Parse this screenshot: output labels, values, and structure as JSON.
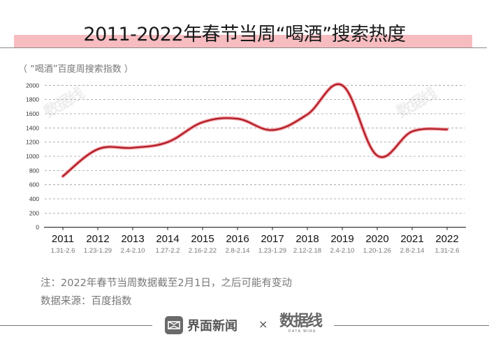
{
  "header": {
    "title": "2011-2022年春节当周“喝酒”搜索热度",
    "band_color": "#f7bcc0"
  },
  "chart_data": {
    "type": "line",
    "title": "2011-2022年春节当周“喝酒”搜索热度",
    "ylabel": "（ “喝酒”百度周搜索指数 ）",
    "xlabel": "",
    "categories": [
      "2011",
      "2012",
      "2013",
      "2014",
      "2015",
      "2016",
      "2017",
      "2018",
      "2019",
      "2020",
      "2021",
      "2022"
    ],
    "category_sublabels": [
      "1.31-2.6",
      "1.23-1.29",
      "2.4-2.10",
      "1.27-2.2",
      "2.16-2.22",
      "2.8-2.14",
      "1.23-1.29",
      "2.12-2.18",
      "2.4-2.10",
      "1.20-1.26",
      "2.8-2.14",
      "1.31-2.6"
    ],
    "series": [
      {
        "name": "“喝酒”百度周搜索指数",
        "color": "#b01a24",
        "values": [
          720,
          1100,
          1120,
          1200,
          1480,
          1530,
          1370,
          1590,
          2000,
          1010,
          1350,
          1380
        ]
      }
    ],
    "ylim": [
      0,
      2000
    ],
    "yticks": [
      0,
      200,
      400,
      600,
      800,
      1000,
      1200,
      1400,
      1600,
      1800,
      2000
    ],
    "grid": true,
    "grid_style": "dashed",
    "legend": "none",
    "smooth": true
  },
  "notes": {
    "note": "注：2022年春节当周数据截至2月1日，之后可能有变动",
    "source": "数据来源：百度指数"
  },
  "footer": {
    "brand_name": "界面新闻",
    "times": "×",
    "partner_name": "数据线",
    "partner_sub": "DATA WIRE"
  }
}
